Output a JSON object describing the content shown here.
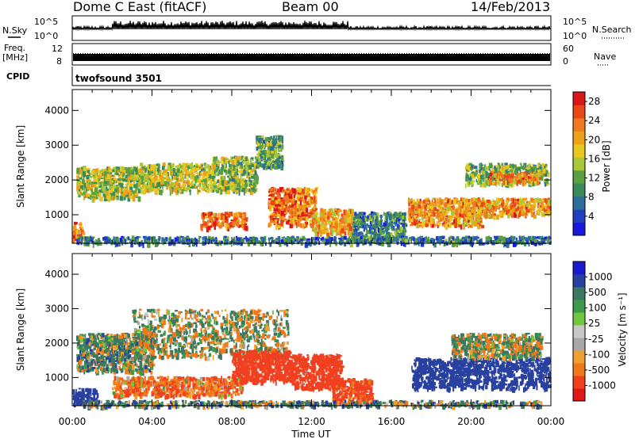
{
  "header": {
    "station": "Dome C East (fitACF)",
    "beam": "Beam 00",
    "date": "14/Feb/2013"
  },
  "strips": {
    "nsky_label": "N.Sky",
    "nsearch_label": "N.Search",
    "noise_ticks": [
      "10^5",
      "10^0"
    ],
    "freq_label": "Freq.",
    "freq_unit": "[MHz]",
    "freq_ticks": [
      "12",
      "8"
    ],
    "nave_label": "Nave",
    "nave_ticks": [
      "60",
      "0"
    ],
    "cpid_label": "CPID",
    "cpid_text": "twofsound 3501"
  },
  "colors": {
    "power": [
      "#1818e0",
      "#2040c0",
      "#2e6e9a",
      "#3a8a5a",
      "#5aa040",
      "#a8c83a",
      "#e8c820",
      "#f0a018",
      "#f07820",
      "#e84818",
      "#d81818"
    ],
    "velocity": [
      "#e01818",
      "#f04020",
      "#f07818",
      "#f0a030",
      "#a8a8a8",
      "#c8c8c8",
      "#70c840",
      "#3e9a4a",
      "#3a7860",
      "#2840a0",
      "#1a1ad0"
    ]
  },
  "chart_data": [
    {
      "type": "heatmap",
      "title": "Power",
      "xlabel": "",
      "ylabel": "Slant Range [km]",
      "x_ticks": [
        "00:00",
        "04:00",
        "08:00",
        "12:00",
        "16:00",
        "20:00",
        "00:00"
      ],
      "y_ticks": [
        "1000",
        "2000",
        "3000",
        "4000"
      ],
      "ylim": [
        180,
        4600
      ],
      "colorbar": {
        "label": "Power [dB]",
        "ticks": [
          "4",
          "8",
          "12",
          "16",
          "20",
          "24",
          "28"
        ],
        "range": [
          0,
          30
        ]
      },
      "regions": [
        {
          "t": [
            0.0,
            0.5
          ],
          "r": [
            300,
            800
          ],
          "v": 24
        },
        {
          "t": [
            0.2,
            3.3
          ],
          "r": [
            1500,
            2400
          ],
          "v": 15
        },
        {
          "t": [
            3.3,
            7.0
          ],
          "r": [
            1700,
            2500
          ],
          "v": 16
        },
        {
          "t": [
            6.4,
            8.7
          ],
          "r": [
            650,
            1100
          ],
          "v": 25
        },
        {
          "t": [
            7.0,
            9.2
          ],
          "r": [
            1700,
            2700
          ],
          "v": 14
        },
        {
          "t": [
            9.2,
            10.5
          ],
          "r": [
            2400,
            3300
          ],
          "v": 11
        },
        {
          "t": [
            9.8,
            12.2
          ],
          "r": [
            700,
            1800
          ],
          "v": 24
        },
        {
          "t": [
            12.0,
            14.0
          ],
          "r": [
            500,
            1200
          ],
          "v": 21
        },
        {
          "t": [
            14.0,
            16.7
          ],
          "r": [
            250,
            1100
          ],
          "v": 8
        },
        {
          "t": [
            16.8,
            20.5
          ],
          "r": [
            700,
            1500
          ],
          "v": 22
        },
        {
          "t": [
            19.5,
            23.9
          ],
          "r": [
            1000,
            1500
          ],
          "v": 22
        },
        {
          "t": [
            19.7,
            23.8
          ],
          "r": [
            1900,
            2500
          ],
          "v": 13
        },
        {
          "t": [
            20.8,
            23.4
          ],
          "r": [
            1950,
            2250
          ],
          "v": 22
        },
        {
          "t": [
            0.2,
            23.9
          ],
          "r": [
            200,
            400
          ],
          "v": 7
        }
      ]
    },
    {
      "type": "heatmap",
      "title": "Velocity",
      "xlabel": "Time UT",
      "ylabel": "Slant Range [km]",
      "x_ticks": [
        "00:00",
        "04:00",
        "08:00",
        "12:00",
        "16:00",
        "20:00",
        "00:00"
      ],
      "y_ticks": [
        "1000",
        "2000",
        "3000",
        "4000"
      ],
      "ylim": [
        180,
        4600
      ],
      "colorbar": {
        "label": "Velocity [m s⁻¹]",
        "ticks": [
          "1000",
          "500",
          "100",
          "25",
          "-25",
          "-100",
          "-500",
          "-1000"
        ]
      },
      "regions": [
        {
          "t": [
            0.0,
            1.3
          ],
          "r": [
            250,
            700
          ],
          "v": 300
        },
        {
          "t": [
            0.2,
            4.0
          ],
          "r": [
            1200,
            2300
          ],
          "v": 40
        },
        {
          "t": [
            3.0,
            10.8
          ],
          "r": [
            1600,
            3000
          ],
          "v": 10
        },
        {
          "t": [
            2.0,
            8.5
          ],
          "r": [
            500,
            1050
          ],
          "v": -100
        },
        {
          "t": [
            8.0,
            11.0
          ],
          "r": [
            900,
            1800
          ],
          "v": -300
        },
        {
          "t": [
            11.0,
            13.5
          ],
          "r": [
            700,
            1700
          ],
          "v": -250
        },
        {
          "t": [
            13.0,
            15.0
          ],
          "r": [
            300,
            1000
          ],
          "v": -180
        },
        {
          "t": [
            17.0,
            23.9
          ],
          "r": [
            700,
            1600
          ],
          "v": 300
        },
        {
          "t": [
            19.0,
            23.5
          ],
          "r": [
            1600,
            2300
          ],
          "v": 15
        },
        {
          "t": [
            0.5,
            23.5
          ],
          "r": [
            200,
            350
          ],
          "v": 60
        }
      ]
    }
  ]
}
